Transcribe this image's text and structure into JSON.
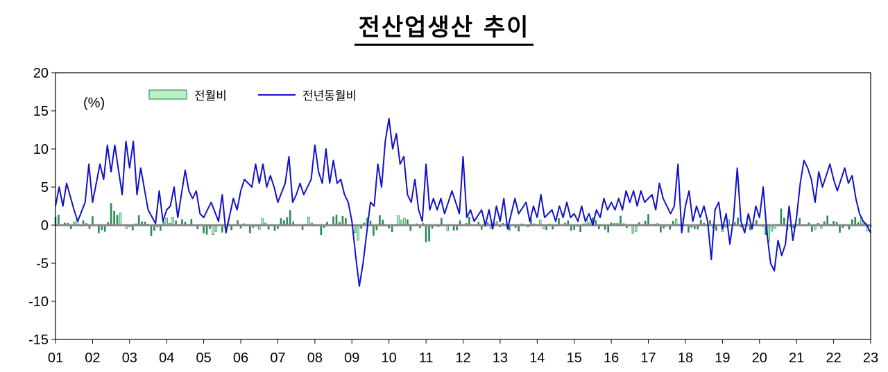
{
  "chart_data": {
    "type": "bar+line",
    "title": "전산업생산 추이",
    "unit_label": "(%)",
    "ylim": [
      -15,
      20
    ],
    "yticks": [
      20,
      15,
      10,
      5,
      0,
      -5,
      -10,
      -15
    ],
    "x_tick_labels": [
      "01",
      "02",
      "03",
      "04",
      "05",
      "06",
      "07",
      "08",
      "09",
      "10",
      "11",
      "12",
      "13",
      "14",
      "15",
      "16",
      "17",
      "18",
      "19",
      "20",
      "21",
      "22",
      "23"
    ],
    "x_range": [
      2001,
      2023
    ],
    "legend_position": "top-left",
    "grid": false,
    "colors": {
      "bar_light": "#b9efc3",
      "bar_light_border": "#2e9a57",
      "bar_dark": "#2e8b57",
      "line": "#1010cc",
      "zero_line": "#888888",
      "axis": "#000000"
    },
    "series": [
      {
        "name": "전월비",
        "type": "bar",
        "anchors": [
          [
            2001.0,
            2.0
          ],
          [
            2001.3,
            -0.5
          ],
          [
            2001.6,
            1.5
          ],
          [
            2001.9,
            -0.8
          ],
          [
            2002.0,
            1.0
          ],
          [
            2002.3,
            -2.0
          ],
          [
            2002.5,
            4.0
          ],
          [
            2002.8,
            1.3
          ],
          [
            2003.0,
            -0.9
          ],
          [
            2003.3,
            1.5
          ],
          [
            2003.6,
            -1.5
          ],
          [
            2004.0,
            0.8
          ],
          [
            2004.5,
            1.2
          ],
          [
            2004.9,
            -1.2
          ],
          [
            2005.5,
            -1.5
          ],
          [
            2005.9,
            1.0
          ],
          [
            2006.3,
            -1.8
          ],
          [
            2006.6,
            1.5
          ],
          [
            2006.9,
            -2.0
          ],
          [
            2007.3,
            3.7
          ],
          [
            2007.6,
            -1.8
          ],
          [
            2007.9,
            2.0
          ],
          [
            2008.2,
            -1.8
          ],
          [
            2008.6,
            2.5
          ],
          [
            2008.9,
            1.5
          ],
          [
            2009.0,
            -1.5
          ],
          [
            2009.2,
            -3.5
          ],
          [
            2009.4,
            3.5
          ],
          [
            2009.6,
            -2.5
          ],
          [
            2009.8,
            2.0
          ],
          [
            2010.0,
            -1.5
          ],
          [
            2010.3,
            2.4
          ],
          [
            2010.6,
            -1.0
          ],
          [
            2010.9,
            1.3
          ],
          [
            2011.0,
            -4.2
          ],
          [
            2011.4,
            1.0
          ],
          [
            2011.8,
            -1.2
          ],
          [
            2012.2,
            1.5
          ],
          [
            2012.6,
            -1.0
          ],
          [
            2013.0,
            1.0
          ],
          [
            2013.4,
            -1.5
          ],
          [
            2013.8,
            1.2
          ],
          [
            2014.2,
            -1.0
          ],
          [
            2014.6,
            1.0
          ],
          [
            2015.0,
            -1.2
          ],
          [
            2015.4,
            1.3
          ],
          [
            2015.8,
            -0.9
          ],
          [
            2016.2,
            1.0
          ],
          [
            2016.6,
            -1.0
          ],
          [
            2017.0,
            1.2
          ],
          [
            2017.5,
            -1.0
          ],
          [
            2017.9,
            1.5
          ],
          [
            2018.2,
            -1.5
          ],
          [
            2018.6,
            1.0
          ],
          [
            2019.0,
            -1.3
          ],
          [
            2019.4,
            1.5
          ],
          [
            2019.8,
            -1.0
          ],
          [
            2020.0,
            1.0
          ],
          [
            2020.2,
            -2.8
          ],
          [
            2020.4,
            -1.6
          ],
          [
            2020.6,
            3.0
          ],
          [
            2020.8,
            -1.4
          ],
          [
            2021.0,
            1.2
          ],
          [
            2021.4,
            -1.2
          ],
          [
            2021.8,
            1.5
          ],
          [
            2022.2,
            -1.0
          ],
          [
            2022.6,
            1.5
          ],
          [
            2023.0,
            -0.8
          ]
        ]
      },
      {
        "name": "전년동월비",
        "type": "line",
        "anchors": [
          [
            2001.0,
            2.5
          ],
          [
            2001.1,
            5.0
          ],
          [
            2001.2,
            2.5
          ],
          [
            2001.3,
            5.5
          ],
          [
            2001.5,
            2.0
          ],
          [
            2001.6,
            0.5
          ],
          [
            2001.8,
            3.0
          ],
          [
            2001.9,
            8.0
          ],
          [
            2002.0,
            3.0
          ],
          [
            2002.2,
            8.0
          ],
          [
            2002.3,
            6.0
          ],
          [
            2002.4,
            10.5
          ],
          [
            2002.5,
            7.0
          ],
          [
            2002.6,
            10.5
          ],
          [
            2002.8,
            4.0
          ],
          [
            2002.9,
            11.0
          ],
          [
            2003.0,
            7.5
          ],
          [
            2003.1,
            11.0
          ],
          [
            2003.2,
            4.0
          ],
          [
            2003.3,
            7.5
          ],
          [
            2003.5,
            2.0
          ],
          [
            2003.7,
            0.2
          ],
          [
            2003.8,
            4.5
          ],
          [
            2003.9,
            0.5
          ],
          [
            2004.0,
            2.0
          ],
          [
            2004.1,
            2.5
          ],
          [
            2004.2,
            5.0
          ],
          [
            2004.3,
            1.0
          ],
          [
            2004.5,
            7.2
          ],
          [
            2004.6,
            4.5
          ],
          [
            2004.7,
            3.5
          ],
          [
            2004.8,
            4.5
          ],
          [
            2004.9,
            1.5
          ],
          [
            2005.0,
            1.0
          ],
          [
            2005.2,
            3.0
          ],
          [
            2005.4,
            0.5
          ],
          [
            2005.5,
            4.0
          ],
          [
            2005.6,
            -1.0
          ],
          [
            2005.8,
            3.5
          ],
          [
            2005.9,
            2.0
          ],
          [
            2006.0,
            4.5
          ],
          [
            2006.1,
            6.0
          ],
          [
            2006.3,
            5.0
          ],
          [
            2006.4,
            8.0
          ],
          [
            2006.5,
            5.5
          ],
          [
            2006.6,
            8.0
          ],
          [
            2006.7,
            5.0
          ],
          [
            2006.8,
            6.5
          ],
          [
            2006.9,
            5.0
          ],
          [
            2007.0,
            3.0
          ],
          [
            2007.2,
            5.5
          ],
          [
            2007.3,
            9.0
          ],
          [
            2007.4,
            3.0
          ],
          [
            2007.5,
            4.0
          ],
          [
            2007.6,
            5.5
          ],
          [
            2007.7,
            4.0
          ],
          [
            2007.8,
            5.0
          ],
          [
            2007.9,
            6.0
          ],
          [
            2008.0,
            10.5
          ],
          [
            2008.1,
            7.0
          ],
          [
            2008.2,
            5.5
          ],
          [
            2008.3,
            10.0
          ],
          [
            2008.4,
            5.5
          ],
          [
            2008.5,
            8.5
          ],
          [
            2008.6,
            5.5
          ],
          [
            2008.7,
            6.0
          ],
          [
            2008.8,
            4.0
          ],
          [
            2008.9,
            3.0
          ],
          [
            2009.0,
            0.5
          ],
          [
            2009.1,
            -4.0
          ],
          [
            2009.2,
            -8.0
          ],
          [
            2009.3,
            -5.0
          ],
          [
            2009.4,
            -1.0
          ],
          [
            2009.5,
            3.0
          ],
          [
            2009.6,
            2.5
          ],
          [
            2009.7,
            8.0
          ],
          [
            2009.8,
            5.0
          ],
          [
            2009.9,
            11.0
          ],
          [
            2010.0,
            14.0
          ],
          [
            2010.1,
            10.0
          ],
          [
            2010.2,
            12.0
          ],
          [
            2010.3,
            8.0
          ],
          [
            2010.4,
            9.0
          ],
          [
            2010.5,
            4.0
          ],
          [
            2010.6,
            3.0
          ],
          [
            2010.7,
            6.0
          ],
          [
            2010.8,
            2.0
          ],
          [
            2010.9,
            0.5
          ],
          [
            2011.0,
            8.0
          ],
          [
            2011.1,
            2.0
          ],
          [
            2011.2,
            3.5
          ],
          [
            2011.3,
            2.0
          ],
          [
            2011.4,
            3.5
          ],
          [
            2011.5,
            1.5
          ],
          [
            2011.6,
            3.0
          ],
          [
            2011.7,
            4.5
          ],
          [
            2011.8,
            3.0
          ],
          [
            2011.9,
            1.5
          ],
          [
            2012.0,
            9.0
          ],
          [
            2012.1,
            1.0
          ],
          [
            2012.2,
            2.0
          ],
          [
            2012.3,
            0.5
          ],
          [
            2012.5,
            2.0
          ],
          [
            2012.6,
            0.0
          ],
          [
            2012.7,
            2.0
          ],
          [
            2012.8,
            -0.5
          ],
          [
            2012.9,
            2.5
          ],
          [
            2013.0,
            0.5
          ],
          [
            2013.1,
            3.5
          ],
          [
            2013.2,
            -0.5
          ],
          [
            2013.4,
            3.5
          ],
          [
            2013.5,
            1.5
          ],
          [
            2013.7,
            3.0
          ],
          [
            2013.8,
            0.5
          ],
          [
            2013.9,
            2.5
          ],
          [
            2014.0,
            1.0
          ],
          [
            2014.1,
            4.0
          ],
          [
            2014.2,
            1.0
          ],
          [
            2014.4,
            2.0
          ],
          [
            2014.5,
            0.5
          ],
          [
            2014.6,
            2.5
          ],
          [
            2014.7,
            1.0
          ],
          [
            2014.8,
            3.0
          ],
          [
            2014.9,
            1.0
          ],
          [
            2015.0,
            1.5
          ],
          [
            2015.1,
            0.5
          ],
          [
            2015.2,
            2.5
          ],
          [
            2015.3,
            0.5
          ],
          [
            2015.4,
            1.5
          ],
          [
            2015.5,
            0.0
          ],
          [
            2015.6,
            2.0
          ],
          [
            2015.7,
            1.0
          ],
          [
            2015.8,
            3.5
          ],
          [
            2015.9,
            2.0
          ],
          [
            2016.0,
            3.0
          ],
          [
            2016.1,
            2.0
          ],
          [
            2016.2,
            3.5
          ],
          [
            2016.3,
            2.0
          ],
          [
            2016.4,
            4.5
          ],
          [
            2016.5,
            3.0
          ],
          [
            2016.6,
            4.5
          ],
          [
            2016.7,
            2.5
          ],
          [
            2016.8,
            4.5
          ],
          [
            2016.9,
            3.0
          ],
          [
            2017.0,
            3.5
          ],
          [
            2017.1,
            4.0
          ],
          [
            2017.2,
            2.0
          ],
          [
            2017.3,
            5.5
          ],
          [
            2017.4,
            3.5
          ],
          [
            2017.5,
            2.5
          ],
          [
            2017.6,
            1.5
          ],
          [
            2017.7,
            2.5
          ],
          [
            2017.8,
            8.0
          ],
          [
            2017.9,
            -1.0
          ],
          [
            2018.0,
            2.5
          ],
          [
            2018.1,
            4.5
          ],
          [
            2018.2,
            0.5
          ],
          [
            2018.3,
            2.5
          ],
          [
            2018.4,
            1.0
          ],
          [
            2018.5,
            2.5
          ],
          [
            2018.6,
            0.5
          ],
          [
            2018.7,
            -4.5
          ],
          [
            2018.8,
            2.0
          ],
          [
            2018.9,
            3.0
          ],
          [
            2019.0,
            -0.5
          ],
          [
            2019.1,
            1.5
          ],
          [
            2019.2,
            -2.5
          ],
          [
            2019.3,
            1.0
          ],
          [
            2019.4,
            7.5
          ],
          [
            2019.5,
            0.5
          ],
          [
            2019.6,
            -1.0
          ],
          [
            2019.7,
            1.5
          ],
          [
            2019.8,
            -0.5
          ],
          [
            2019.9,
            2.5
          ],
          [
            2020.0,
            1.0
          ],
          [
            2020.1,
            5.0
          ],
          [
            2020.2,
            -1.0
          ],
          [
            2020.3,
            -5.0
          ],
          [
            2020.4,
            -6.0
          ],
          [
            2020.5,
            -2.0
          ],
          [
            2020.6,
            -4.0
          ],
          [
            2020.7,
            -2.5
          ],
          [
            2020.8,
            2.5
          ],
          [
            2020.9,
            -2.0
          ],
          [
            2021.0,
            1.0
          ],
          [
            2021.1,
            5.5
          ],
          [
            2021.2,
            8.5
          ],
          [
            2021.3,
            7.5
          ],
          [
            2021.4,
            6.0
          ],
          [
            2021.5,
            3.0
          ],
          [
            2021.6,
            7.0
          ],
          [
            2021.7,
            5.0
          ],
          [
            2021.8,
            6.5
          ],
          [
            2021.9,
            8.0
          ],
          [
            2022.0,
            6.0
          ],
          [
            2022.1,
            4.5
          ],
          [
            2022.2,
            6.0
          ],
          [
            2022.3,
            7.5
          ],
          [
            2022.4,
            5.5
          ],
          [
            2022.5,
            6.5
          ],
          [
            2022.6,
            3.5
          ],
          [
            2022.7,
            1.5
          ],
          [
            2022.8,
            0.5
          ],
          [
            2022.9,
            0.0
          ],
          [
            2023.0,
            -1.0
          ]
        ]
      }
    ]
  }
}
